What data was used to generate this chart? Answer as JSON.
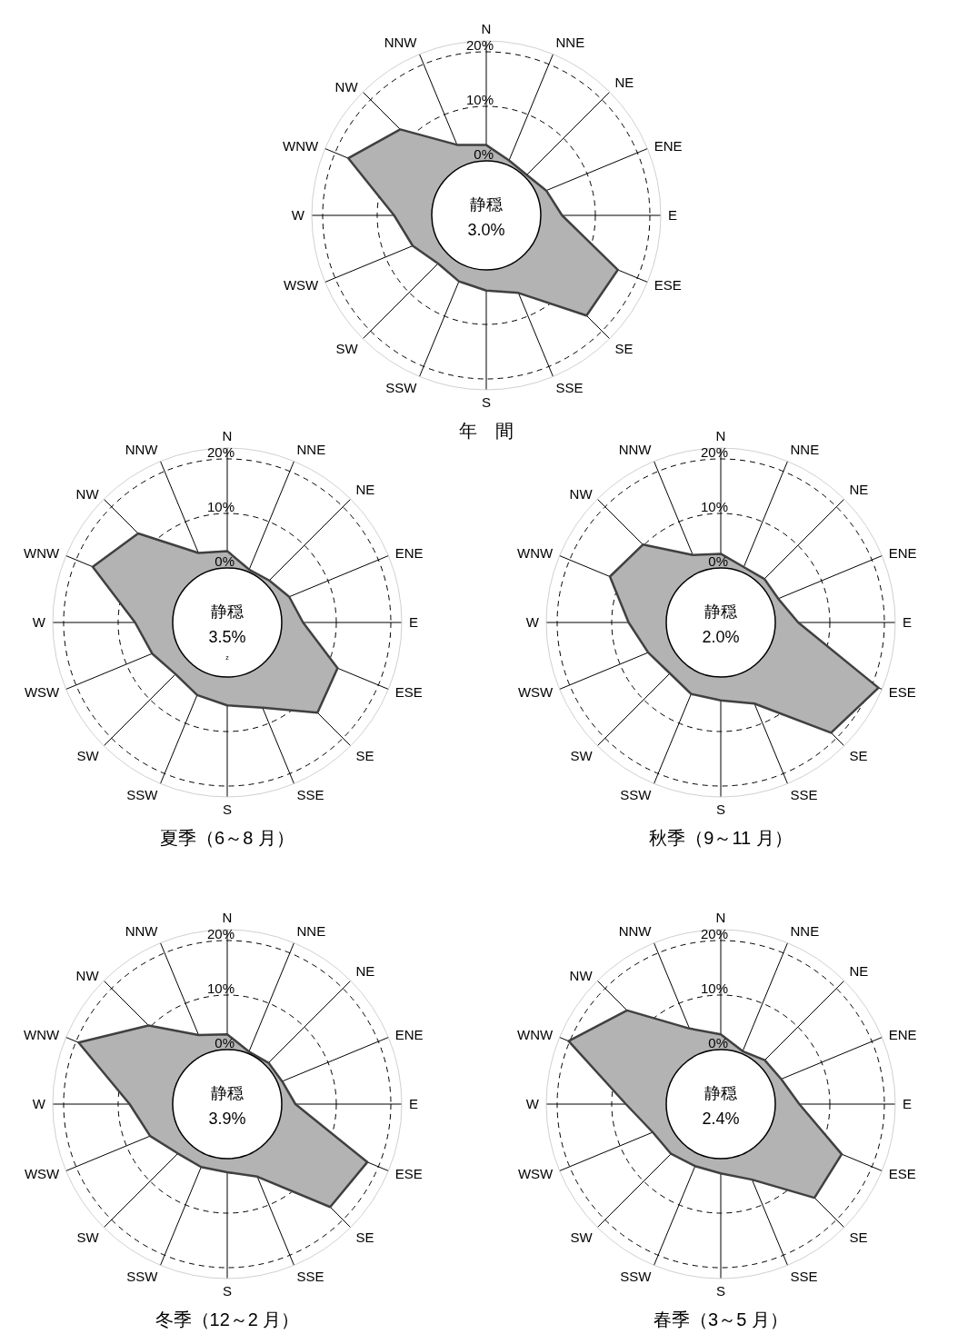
{
  "chart_data": [
    {
      "type": "radar",
      "title": "年　間",
      "categories": [
        "N",
        "NNE",
        "NE",
        "ENE",
        "E",
        "ESE",
        "SE",
        "SSE",
        "S",
        "SSW",
        "SW",
        "WSW",
        "W",
        "WNW",
        "NW",
        "NNW"
      ],
      "series": [
        {
          "color": "#b3b3b3",
          "values": [
            2.9,
            0.9,
            0.5,
            1.9,
            3.9,
            16.1,
            16.0,
            5.4,
            3.8,
            3.1,
            2.5,
            4.6,
            6.9,
            17.4,
            12.3,
            4.0
          ]
        }
      ],
      "ylim": [
        -10,
        22
      ],
      "yticks": [
        {
          "value": 0,
          "label": "0%"
        },
        {
          "value": 10,
          "label": "10%"
        },
        {
          "value": 20,
          "label": "20%"
        }
      ],
      "grid": true,
      "legend": false,
      "annotations": [
        "静穏",
        "3.0%"
      ]
    },
    {
      "type": "radar",
      "title": "夏季（6～8 月）",
      "categories": [
        "N",
        "NNE",
        "NE",
        "ENE",
        "E",
        "ESE",
        "SE",
        "SSE",
        "S",
        "SSW",
        "SW",
        "WSW",
        "W",
        "WNW",
        "NW",
        "NNW"
      ],
      "series": [
        {
          "color": "#b3b3b3",
          "values": [
            3.1,
            0.5,
            0.9,
            2.3,
            3.9,
            11.9,
            13.4,
            6.9,
            5.2,
            4.4,
            3.4,
            4.9,
            6.9,
            16.7,
            13.1,
            3.8
          ]
        }
      ],
      "ylim": [
        -10,
        22
      ],
      "yticks": [
        {
          "value": 0,
          "label": "0%"
        },
        {
          "value": 10,
          "label": "10%"
        },
        {
          "value": 20,
          "label": "20%"
        }
      ],
      "grid": true,
      "legend": false,
      "annotations": [
        "静穏",
        "3.5%",
        "z"
      ]
    },
    {
      "type": "radar",
      "title": "秋季（9～11 月）",
      "categories": [
        "N",
        "NNE",
        "NE",
        "ENE",
        "E",
        "ESE",
        "SE",
        "SSE",
        "S",
        "SSW",
        "SW",
        "WSW",
        "W",
        "WNW",
        "NW",
        "NNW"
      ],
      "series": [
        {
          "color": "#b3b3b3",
          "values": [
            2.6,
            1.0,
            1.3,
            1.4,
            4.2,
            21.3,
            18.6,
            6.1,
            4.3,
            4.2,
            3.2,
            4.4,
            6.9,
            12.0,
            10.2,
            3.4
          ]
        }
      ],
      "ylim": [
        -10,
        22
      ],
      "yticks": [
        {
          "value": 0,
          "label": "0%"
        },
        {
          "value": 10,
          "label": "10%"
        },
        {
          "value": 20,
          "label": "20%"
        }
      ],
      "grid": true,
      "legend": false,
      "annotations": [
        "静穏",
        "2.0%"
      ]
    },
    {
      "type": "radar",
      "title": "冬季（12～2 月）",
      "categories": [
        "N",
        "NNE",
        "NE",
        "ENE",
        "E",
        "ESE",
        "SE",
        "SSE",
        "S",
        "SSW",
        "SW",
        "WSW",
        "W",
        "WNW",
        "NW",
        "NNW"
      ],
      "series": [
        {
          "color": "#b3b3b3",
          "values": [
            2.8,
            0.4,
            0.7,
            0.9,
            2.5,
            17.8,
            16.7,
            4.4,
            2.5,
            2.5,
            2.8,
            5.3,
            7.9,
            19.5,
            10.4,
            3.7
          ]
        }
      ],
      "ylim": [
        -10,
        22
      ],
      "yticks": [
        {
          "value": 0,
          "label": "0%"
        },
        {
          "value": 10,
          "label": "10%"
        },
        {
          "value": 20,
          "label": "20%"
        }
      ],
      "grid": true,
      "legend": false,
      "annotations": [
        "静穏",
        "3.9%"
      ]
    },
    {
      "type": "radar",
      "title": "春季（3～5 月）",
      "categories": [
        "N",
        "NNE",
        "NE",
        "ENE",
        "E",
        "ESE",
        "SE",
        "SSE",
        "S",
        "SSW",
        "SW",
        "WSW",
        "W",
        "WNW",
        "NW",
        "NNW"
      ],
      "series": [
        {
          "color": "#b3b3b3",
          "values": [
            2.8,
            0.5,
            1.4,
            2.0,
            4.4,
            14.0,
            14.3,
            5.0,
            2.7,
            2.3,
            2.9,
            3.5,
            7.4,
            20.2,
            14.3,
            5.0
          ]
        }
      ],
      "ylim": [
        -10,
        22
      ],
      "yticks": [
        {
          "value": 0,
          "label": "0%"
        },
        {
          "value": 10,
          "label": "10%"
        },
        {
          "value": 20,
          "label": "20%"
        }
      ],
      "grid": true,
      "legend": false,
      "annotations": [
        "静穏",
        "2.4%"
      ]
    }
  ]
}
